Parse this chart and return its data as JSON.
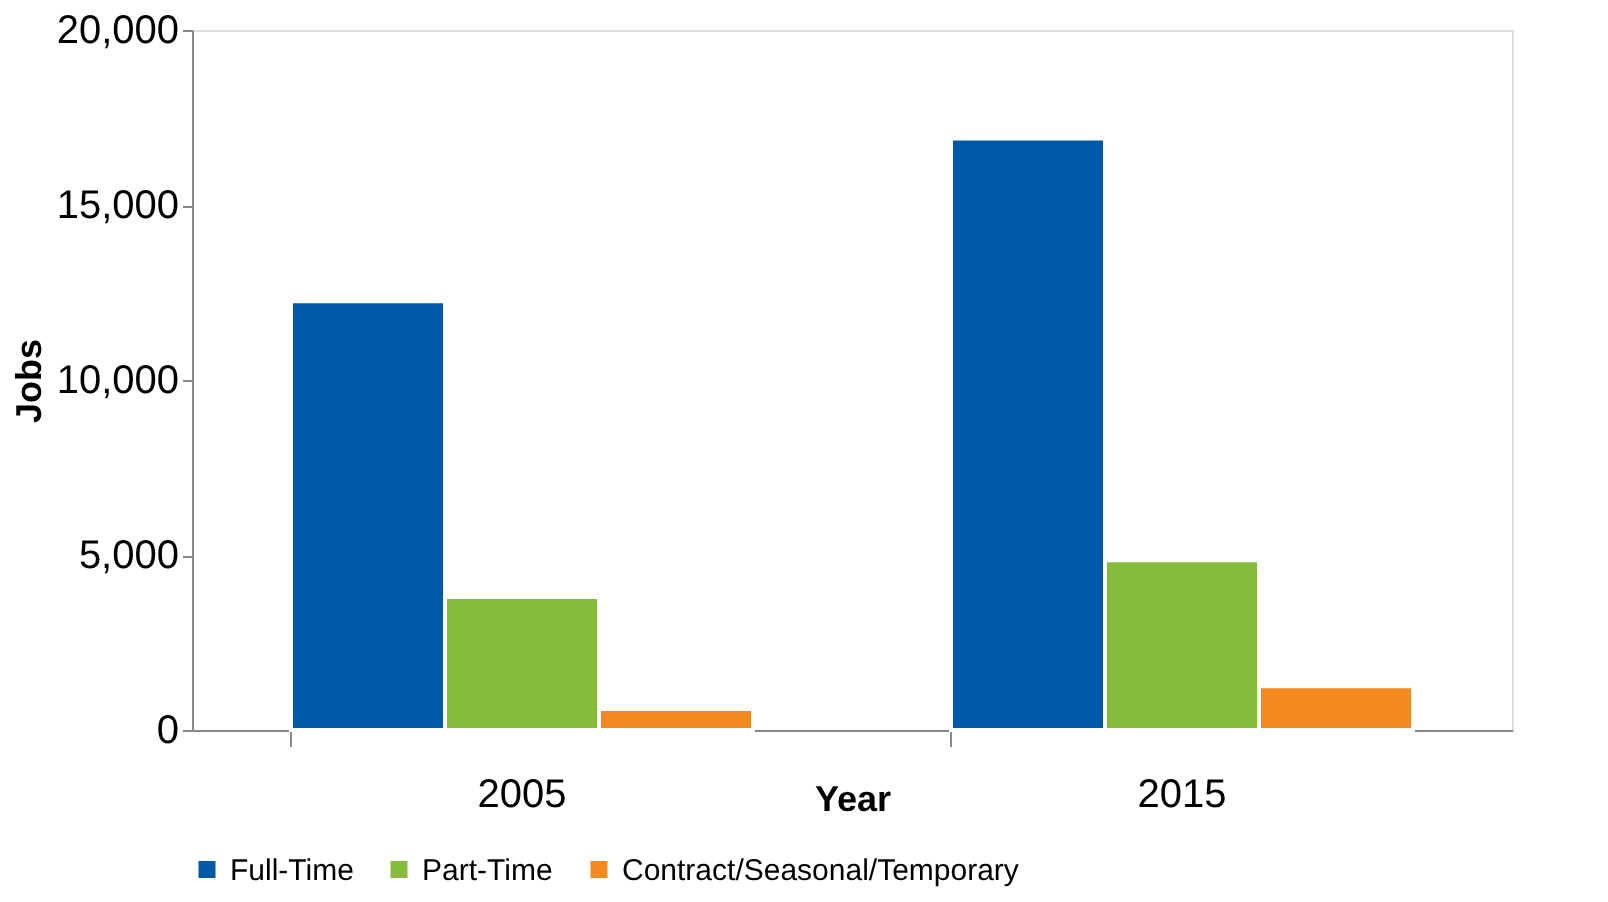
{
  "chart_data": {
    "type": "bar",
    "xlabel": "Year",
    "ylabel": "Jobs",
    "categories": [
      "2005",
      "2015"
    ],
    "series": [
      {
        "name": "Full-Time",
        "color": "#005aa8",
        "values": [
          12250,
          16900
        ]
      },
      {
        "name": "Part-Time",
        "color": "#86bc3c",
        "values": [
          3800,
          4850
        ]
      },
      {
        "name": "Contract/Seasonal/Temporary",
        "color": "#f28a1f",
        "values": [
          600,
          1250
        ]
      }
    ],
    "ylim": [
      0,
      20000
    ],
    "yticks": [
      {
        "value": 0,
        "label": "0"
      },
      {
        "value": 5000,
        "label": "5,000"
      },
      {
        "value": 10000,
        "label": "10,000"
      },
      {
        "value": 15000,
        "label": "15,000"
      },
      {
        "value": 20000,
        "label": "20,000"
      }
    ],
    "grid": false,
    "legend": "bottom"
  }
}
